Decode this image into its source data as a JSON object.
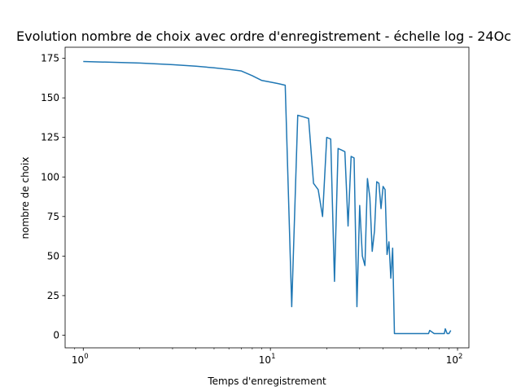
{
  "chart_data": {
    "type": "line",
    "title": "Evolution nombre de choix avec ordre d'enregistrement - échelle log - 24Oc",
    "xlabel": "Temps d'enregistrement",
    "ylabel": "nombre de choix",
    "xscale": "log",
    "xlim": [
      0.8,
      115
    ],
    "ylim": [
      -8,
      182
    ],
    "xticks": [
      {
        "value": 1,
        "base": "10",
        "exp": "0"
      },
      {
        "value": 10,
        "base": "10",
        "exp": "1"
      },
      {
        "value": 100,
        "base": "10",
        "exp": "2"
      }
    ],
    "yticks": [
      0,
      25,
      50,
      75,
      100,
      125,
      150,
      175
    ],
    "grid": false,
    "series": [
      {
        "color": "#1f77b4",
        "x": [
          1,
          2,
          3,
          4,
          5,
          6,
          7,
          8,
          9,
          10,
          11,
          12,
          13,
          14,
          15,
          16,
          17,
          18,
          19,
          20,
          21,
          22,
          23,
          24,
          25,
          26,
          27,
          28,
          29,
          30,
          31,
          32,
          33,
          34,
          35,
          36,
          37,
          38,
          39,
          40,
          41,
          42,
          43,
          44,
          45,
          46,
          47,
          48,
          50,
          55,
          60,
          65,
          70,
          71,
          75,
          80,
          85,
          86,
          88,
          90,
          92
        ],
        "values": [
          173,
          172,
          171,
          170,
          169,
          168,
          167,
          164,
          161,
          160,
          159,
          158,
          18,
          139,
          138,
          137,
          96,
          92,
          75,
          125,
          124,
          34,
          118,
          117,
          116,
          69,
          113,
          112,
          18,
          82,
          50,
          44,
          99,
          87,
          53,
          66,
          97,
          96,
          80,
          94,
          92,
          51,
          59,
          36,
          55,
          1,
          1,
          1,
          1,
          1,
          1,
          1,
          1,
          3,
          1,
          1,
          1,
          4,
          1,
          1,
          3
        ]
      }
    ]
  }
}
